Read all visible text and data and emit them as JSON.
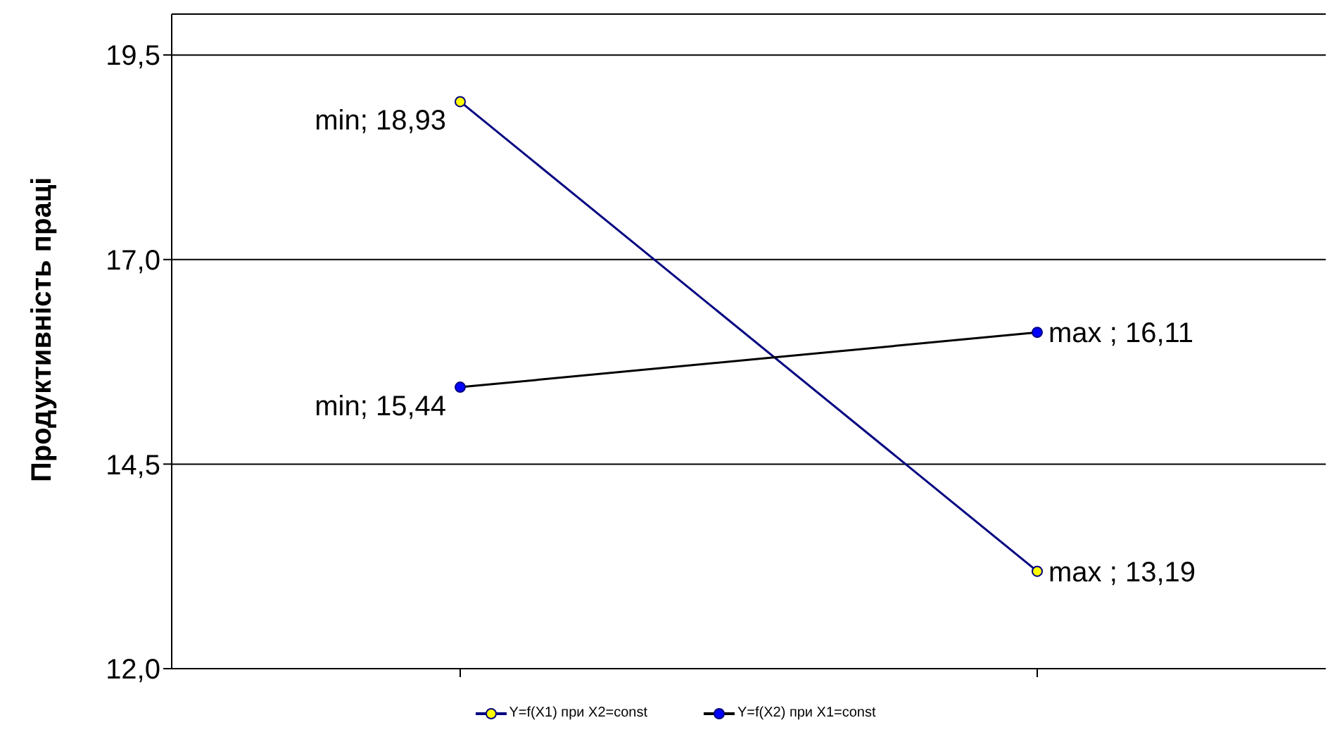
{
  "chart_data": {
    "type": "line",
    "ylabel": "Продуктивність праці",
    "categories": [
      null,
      null
    ],
    "series": [
      {
        "name": "Y=f(X1)  при X2=const",
        "color": "#000080",
        "colors": [
          "#ffff00",
          "#ffff00"
        ],
        "values": [
          18.93,
          13.19
        ],
        "value_labels": [
          "min; 18,93",
          "max ; 13,19"
        ]
      },
      {
        "name": "Y=f(X2)  при X1=const",
        "color": "#000000",
        "colors": [
          "#0000ff",
          "#0000ff"
        ],
        "values": [
          15.44,
          16.11
        ],
        "value_labels": [
          "min; 15,44",
          "max ; 16,11"
        ]
      }
    ],
    "ylim": [
      12,
      20
    ],
    "yticks": [
      {
        "value": 12,
        "label": "12,0"
      },
      {
        "value": 14.5,
        "label": "14,5"
      },
      {
        "value": 17,
        "label": "17,0"
      },
      {
        "value": 19.5,
        "label": "19,5"
      }
    ],
    "grid": "y",
    "legend": "bottom",
    "marker": "circle",
    "line_style": "solid"
  }
}
